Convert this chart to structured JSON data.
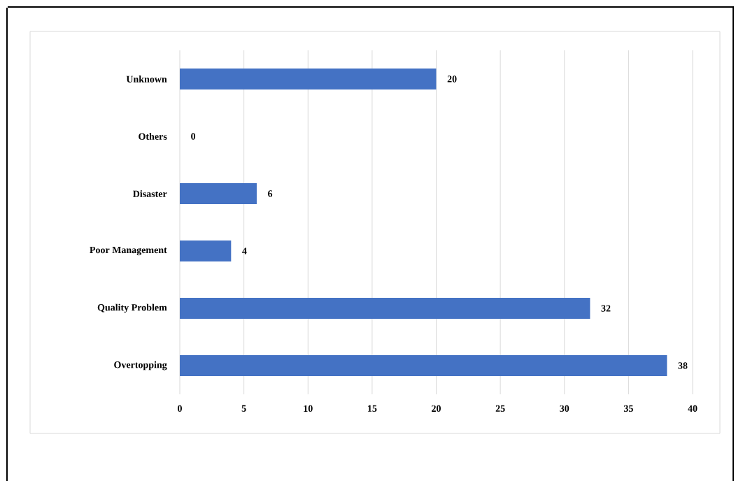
{
  "chart_data": {
    "type": "bar",
    "orientation": "horizontal",
    "categories": [
      "Unknown",
      "Others",
      "Disaster",
      "Poor Management",
      "Quality Problem",
      "Overtopping"
    ],
    "values": [
      20,
      0,
      6,
      4,
      32,
      38
    ],
    "color": "#4472c4",
    "xlim": [
      0,
      40
    ],
    "xticks": [
      0,
      5,
      10,
      15,
      20,
      25,
      30,
      35,
      40
    ],
    "grid": "x",
    "data_labels": true
  }
}
